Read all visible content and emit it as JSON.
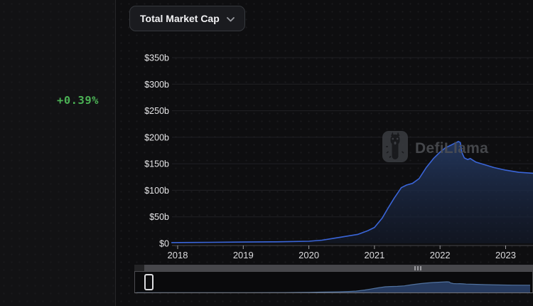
{
  "sidebar": {
    "percent_change": "+0.39%"
  },
  "dropdown": {
    "label": "Total Market Cap"
  },
  "watermark": {
    "text": "DefiLlama"
  },
  "icons": {
    "dropdown_chevron": "chevron-down-icon",
    "watermark_logo": "defillama-llama-icon",
    "brush_grip": "drag-grip-icon"
  },
  "colors": {
    "accent_green": "#4bb155",
    "line_blue": "#3a65d8",
    "mini_line_blue": "#51729f",
    "mini_fill_navy": "#263a5e"
  },
  "chart_data": {
    "type": "area",
    "title": "Total Market Cap",
    "legend": false,
    "grid": true,
    "x_axis": {
      "ticks": [
        "2018",
        "2019",
        "2020",
        "2021",
        "2022",
        "2023"
      ],
      "range": [
        2017.9,
        2023.45
      ]
    },
    "y_axis": {
      "ticks": [
        "$0",
        "$50b",
        "$100b",
        "$150b",
        "$200b",
        "$250b",
        "$300b",
        "$350b"
      ],
      "range": [
        0,
        350
      ],
      "unit": "billions USD"
    },
    "series": [
      {
        "name": "Total Market Cap",
        "color": "#3a65d8",
        "points": [
          [
            2017.91,
            1.5
          ],
          [
            2018.25,
            1.8
          ],
          [
            2018.5,
            2
          ],
          [
            2019.0,
            2.5
          ],
          [
            2019.5,
            3
          ],
          [
            2020.0,
            4
          ],
          [
            2020.2,
            6
          ],
          [
            2020.35,
            9
          ],
          [
            2020.5,
            12
          ],
          [
            2020.75,
            17
          ],
          [
            2020.9,
            24
          ],
          [
            2021.0,
            30
          ],
          [
            2021.12,
            48
          ],
          [
            2021.2,
            65
          ],
          [
            2021.3,
            85
          ],
          [
            2021.41,
            105
          ],
          [
            2021.49,
            110
          ],
          [
            2021.58,
            113
          ],
          [
            2021.68,
            122
          ],
          [
            2021.79,
            143
          ],
          [
            2021.9,
            160
          ],
          [
            2022.0,
            172
          ],
          [
            2022.08,
            180
          ],
          [
            2022.18,
            186
          ],
          [
            2022.28,
            192
          ],
          [
            2022.31,
            190
          ],
          [
            2022.33,
            172
          ],
          [
            2022.37,
            161
          ],
          [
            2022.42,
            158
          ],
          [
            2022.46,
            160
          ],
          [
            2022.51,
            156
          ],
          [
            2022.55,
            153
          ],
          [
            2022.66,
            149
          ],
          [
            2022.82,
            143
          ],
          [
            2023.0,
            138
          ],
          [
            2023.2,
            134
          ],
          [
            2023.45,
            132
          ]
        ]
      }
    ]
  }
}
